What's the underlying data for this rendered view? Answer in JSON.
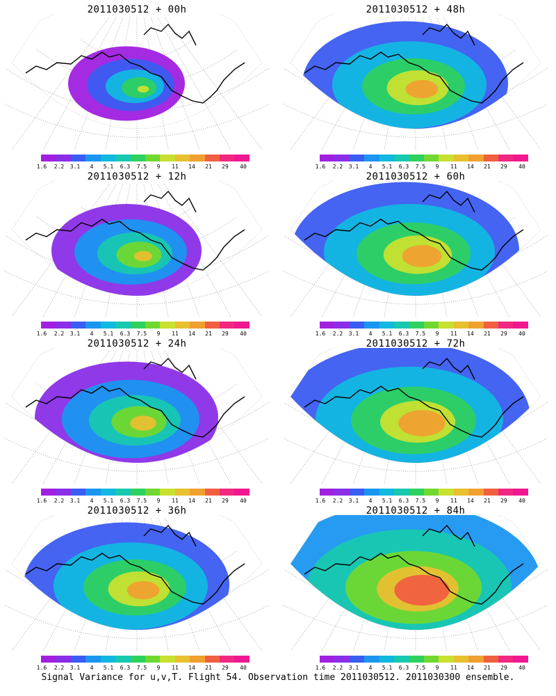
{
  "legend": {
    "labels": [
      "1.6",
      "2.2",
      "3.1",
      "4",
      "5.1",
      "6.3",
      "7.5",
      "9",
      "11",
      "14",
      "21",
      "29",
      "40"
    ],
    "colors": [
      "#a020e0",
      "#8a2ee8",
      "#3a5cf0",
      "#1a96f0",
      "#12b8e0",
      "#18c8b0",
      "#2ed060",
      "#70d830",
      "#c8e030",
      "#e8c030",
      "#f0a030",
      "#f06040",
      "#f02880",
      "#f01890"
    ]
  },
  "panels": [
    {
      "title": "2011030512 + 00h"
    },
    {
      "title": "2011030512 + 48h"
    },
    {
      "title": "2011030512 + 12h"
    },
    {
      "title": "2011030512 + 60h"
    },
    {
      "title": "2011030512 + 24h"
    },
    {
      "title": "2011030512 + 72h"
    },
    {
      "title": "2011030512 + 36h"
    },
    {
      "title": "2011030512 + 84h"
    }
  ],
  "footer": "Signal Variance for u,v,T. Flight 54. Observation time 2011030512. 2011030300 ensemble."
}
